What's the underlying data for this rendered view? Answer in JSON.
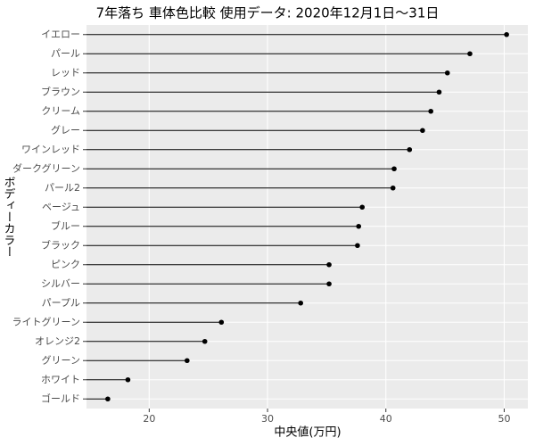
{
  "chart_data": {
    "type": "lollipop",
    "title": "7年落ち 車体色比較 使用データ: 2020年12月1日～31日",
    "x_label": "中央値(万円)",
    "y_label": "ボディーカラー",
    "categories": [
      "イエロー",
      "パール",
      "レッド",
      "ブラウン",
      "クリーム",
      "グレー",
      "ワインレッド",
      "ダークグリーン",
      "パール2",
      "ベージュ",
      "ブルー",
      "ブラック",
      "ピンク",
      "シルバー",
      "パープル",
      "ライトグリーン",
      "オレンジ2",
      "グリーン",
      "ホワイト",
      "ゴールド"
    ],
    "values": [
      50.2,
      47.1,
      45.2,
      44.5,
      43.8,
      43.1,
      42.0,
      40.7,
      40.6,
      38.0,
      37.7,
      37.6,
      35.2,
      35.2,
      32.8,
      26.1,
      24.7,
      23.2,
      18.2,
      16.5
    ],
    "color": "#000000",
    "xlim": [
      14.7,
      52.0
    ],
    "xticks": [
      20,
      30,
      40,
      50
    ],
    "grid": true
  }
}
